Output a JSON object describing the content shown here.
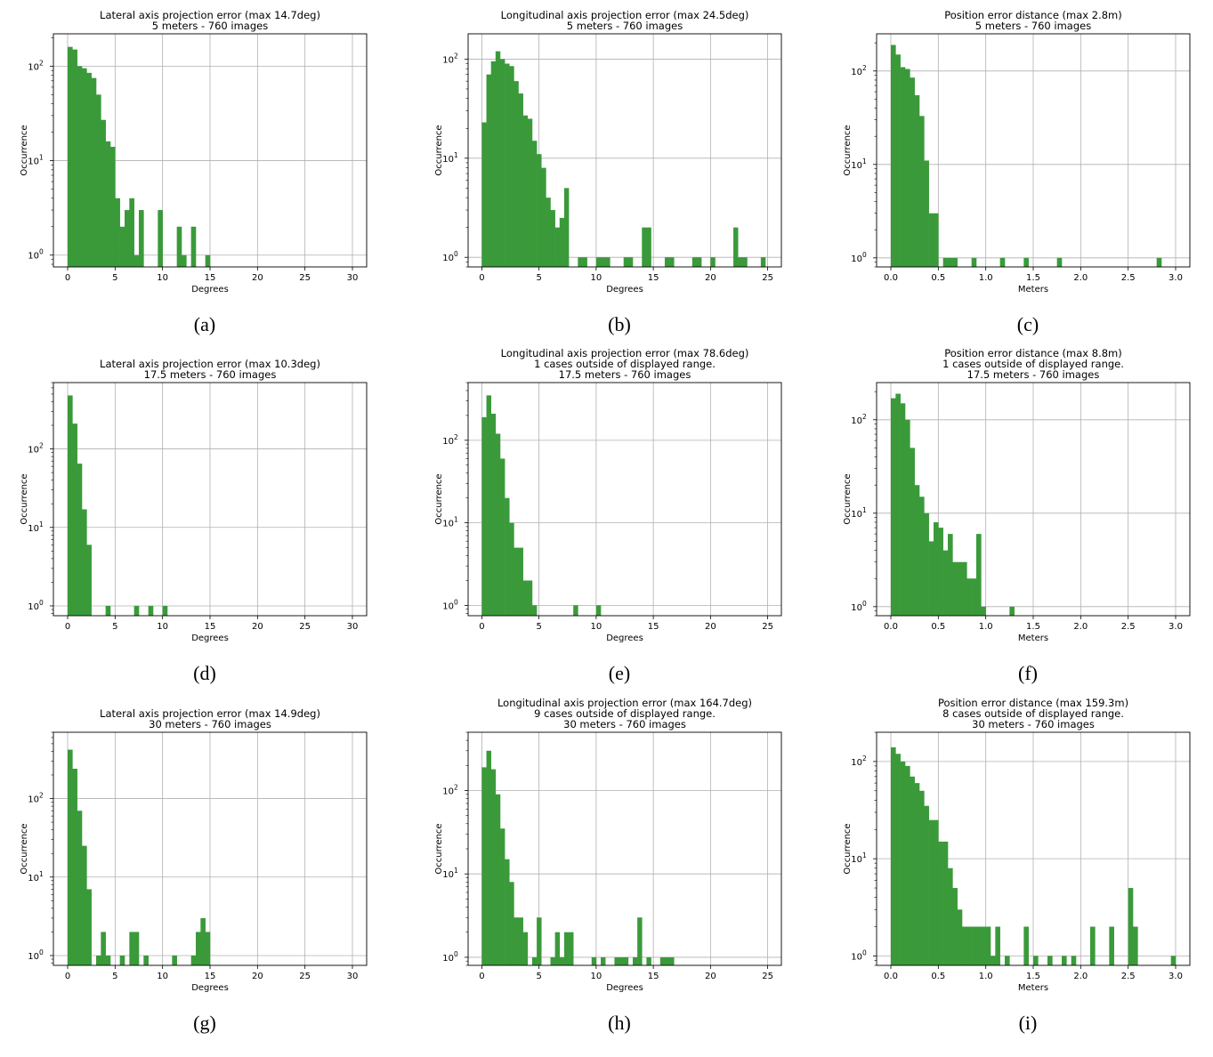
{
  "chart_data": [
    {
      "type": "bar",
      "title": [
        "Lateral axis projection error (max 14.7deg)",
        "5 meters - 760 images"
      ],
      "xlabel": "Degrees",
      "ylabel": "Occurrence",
      "caption": "(a)",
      "xlim": [
        -1.5,
        31.5
      ],
      "xticks": [
        0,
        5,
        10,
        15,
        20,
        25,
        30
      ],
      "yscale": "log",
      "ylim": [
        0.75,
        220
      ],
      "bin_width": 0.5,
      "grid": true,
      "color": "#3a9a3a",
      "x": [
        0,
        0.5,
        1,
        1.5,
        2,
        2.5,
        3,
        3.5,
        4,
        4.5,
        5,
        5.5,
        6,
        6.5,
        7,
        7.5,
        8.5,
        9.5,
        11.5,
        12,
        13,
        14.5
      ],
      "values": [
        160,
        150,
        100,
        95,
        85,
        75,
        50,
        27,
        16,
        14,
        4,
        2,
        3,
        4,
        1,
        3,
        0,
        3,
        2,
        1,
        2,
        1
      ]
    },
    {
      "type": "bar",
      "title": [
        "Longitudinal axis projection error (max 24.5deg)",
        "5 meters - 760 images"
      ],
      "xlabel": "Degrees",
      "ylabel": "Occurrence",
      "caption": "(b)",
      "xlim": [
        -1.2,
        26.2
      ],
      "xticks": [
        0,
        5,
        10,
        15,
        20,
        25
      ],
      "yscale": "log",
      "ylim": [
        0.8,
        180
      ],
      "bin_width": 0.4,
      "grid": true,
      "color": "#3a9a3a",
      "x": [
        0,
        0.4,
        0.8,
        1.2,
        1.6,
        2,
        2.4,
        2.8,
        3.2,
        3.6,
        4,
        4.4,
        4.8,
        5.2,
        5.6,
        6,
        6.4,
        6.8,
        7.2,
        8.4,
        8.8,
        10,
        10.4,
        10.8,
        12.4,
        12.8,
        14,
        14.4,
        16,
        16.4,
        18.4,
        18.8,
        20,
        22,
        22.4,
        22.8,
        24.4
      ],
      "values": [
        23,
        70,
        95,
        120,
        100,
        90,
        85,
        60,
        45,
        27,
        25,
        15,
        11,
        8,
        4,
        3,
        2,
        2.5,
        5,
        1,
        1,
        1,
        1,
        1,
        1,
        1,
        2,
        2,
        1,
        1,
        1,
        1,
        1,
        2,
        1,
        1,
        1
      ]
    },
    {
      "type": "bar",
      "title": [
        "Position error distance (max 2.8m)",
        "5 meters - 760 images"
      ],
      "xlabel": "Meters",
      "ylabel": "Occurrence",
      "caption": "(c)",
      "xlim": [
        -0.15,
        3.15
      ],
      "xticks": [
        0.0,
        0.5,
        1.0,
        1.5,
        2.0,
        2.5,
        3.0
      ],
      "yscale": "log",
      "ylim": [
        0.8,
        250
      ],
      "bin_width": 0.05,
      "grid": true,
      "color": "#3a9a3a",
      "x": [
        0,
        0.05,
        0.1,
        0.15,
        0.2,
        0.25,
        0.3,
        0.35,
        0.4,
        0.45,
        0.55,
        0.6,
        0.65,
        0.85,
        1.15,
        1.4,
        1.75,
        2.8
      ],
      "values": [
        190,
        150,
        110,
        105,
        85,
        55,
        33,
        11,
        3,
        3,
        1,
        1,
        1,
        1,
        1,
        1,
        1,
        1
      ]
    },
    {
      "type": "bar",
      "title": [
        "Lateral axis projection error (max 10.3deg)",
        "17.5 meters - 760 images"
      ],
      "xlabel": "Degrees",
      "ylabel": "Occurrence",
      "caption": "(d)",
      "xlim": [
        -1.5,
        31.5
      ],
      "xticks": [
        0,
        5,
        10,
        15,
        20,
        25,
        30
      ],
      "yscale": "log",
      "ylim": [
        0.75,
        700
      ],
      "bin_width": 0.5,
      "grid": true,
      "color": "#3a9a3a",
      "x": [
        0,
        0.5,
        1,
        1.5,
        2,
        4,
        7,
        8.5,
        10
      ],
      "values": [
        480,
        210,
        65,
        17,
        6,
        1,
        1,
        1,
        1
      ]
    },
    {
      "type": "bar",
      "title": [
        "Longitudinal axis projection error (max 78.6deg)",
        "1 cases outside of displayed range.",
        "17.5 meters - 760 images"
      ],
      "xlabel": "Degrees",
      "ylabel": "Occurrence",
      "caption": "(e)",
      "xlim": [
        -1.2,
        26.2
      ],
      "xticks": [
        0,
        5,
        10,
        15,
        20,
        25
      ],
      "yscale": "log",
      "ylim": [
        0.75,
        500
      ],
      "bin_width": 0.4,
      "grid": true,
      "color": "#3a9a3a",
      "x": [
        0,
        0.4,
        0.8,
        1.2,
        1.6,
        2,
        2.4,
        2.8,
        3.2,
        3.6,
        4,
        4.4,
        8,
        10
      ],
      "values": [
        190,
        350,
        210,
        120,
        60,
        20,
        10,
        5,
        5,
        2,
        2,
        1,
        1,
        1
      ]
    },
    {
      "type": "bar",
      "title": [
        "Position error distance (max 8.8m)",
        "1 cases outside of displayed range.",
        "17.5 meters - 760 images"
      ],
      "xlabel": "Meters",
      "ylabel": "Occurrence",
      "caption": "(f)",
      "xlim": [
        -0.15,
        3.15
      ],
      "xticks": [
        0.0,
        0.5,
        1.0,
        1.5,
        2.0,
        2.5,
        3.0
      ],
      "yscale": "log",
      "ylim": [
        0.8,
        250
      ],
      "bin_width": 0.05,
      "grid": true,
      "color": "#3a9a3a",
      "x": [
        0,
        0.05,
        0.1,
        0.15,
        0.2,
        0.25,
        0.3,
        0.35,
        0.4,
        0.45,
        0.5,
        0.55,
        0.6,
        0.65,
        0.7,
        0.75,
        0.8,
        0.85,
        0.9,
        0.95,
        1.25
      ],
      "values": [
        170,
        190,
        150,
        100,
        50,
        20,
        15,
        10,
        5,
        8,
        7,
        4,
        6,
        3,
        3,
        3,
        2,
        2,
        6,
        1,
        1
      ]
    },
    {
      "type": "bar",
      "title": [
        "Lateral axis projection error (max 14.9deg)",
        "30 meters - 760 images"
      ],
      "xlabel": "Degrees",
      "ylabel": "Occurrence",
      "caption": "(g)",
      "xlim": [
        -1.5,
        31.5
      ],
      "xticks": [
        0,
        5,
        10,
        15,
        20,
        25,
        30
      ],
      "yscale": "log",
      "ylim": [
        0.75,
        700
      ],
      "bin_width": 0.5,
      "grid": true,
      "color": "#3a9a3a",
      "x": [
        0,
        0.5,
        1,
        1.5,
        2,
        3,
        3.5,
        4,
        5.5,
        6.5,
        7,
        8,
        11,
        13,
        13.5,
        14,
        14.5
      ],
      "values": [
        420,
        240,
        70,
        25,
        7,
        1,
        2,
        1,
        1,
        2,
        2,
        1,
        1,
        1,
        2,
        3,
        2
      ]
    },
    {
      "type": "bar",
      "title": [
        "Longitudinal axis projection error (max 164.7deg)",
        "9 cases outside of displayed range.",
        "30 meters - 760 images"
      ],
      "xlabel": "Degrees",
      "ylabel": "Occurrence",
      "caption": "(h)",
      "xlim": [
        -1.2,
        26.2
      ],
      "xticks": [
        0,
        5,
        10,
        15,
        20,
        25
      ],
      "yscale": "log",
      "ylim": [
        0.8,
        500
      ],
      "bin_width": 0.4,
      "grid": true,
      "color": "#3a9a3a",
      "x": [
        0,
        0.4,
        0.8,
        1.2,
        1.6,
        2,
        2.4,
        2.8,
        3.2,
        3.6,
        4.4,
        4.8,
        6,
        6.4,
        6.8,
        7.2,
        7.6,
        9.6,
        10.4,
        11.6,
        12,
        12.4,
        13.2,
        13.6,
        14.4,
        15.6,
        16,
        16.4
      ],
      "values": [
        190,
        300,
        180,
        90,
        35,
        15,
        8,
        3,
        3,
        2,
        1,
        3,
        1,
        2,
        1,
        2,
        2,
        1,
        1,
        1,
        1,
        1,
        1,
        3,
        1,
        1,
        1,
        1
      ]
    },
    {
      "type": "bar",
      "title": [
        "Position error distance (max 159.3m)",
        "8 cases outside of displayed range.",
        "30 meters - 760 images"
      ],
      "xlabel": "Meters",
      "ylabel": "Occurrence",
      "caption": "(i)",
      "xlim": [
        -0.15,
        3.15
      ],
      "xticks": [
        0.0,
        0.5,
        1.0,
        1.5,
        2.0,
        2.5,
        3.0
      ],
      "yscale": "log",
      "ylim": [
        0.8,
        200
      ],
      "bin_width": 0.05,
      "grid": true,
      "color": "#3a9a3a",
      "x": [
        0,
        0.05,
        0.1,
        0.15,
        0.2,
        0.25,
        0.3,
        0.35,
        0.4,
        0.45,
        0.5,
        0.55,
        0.6,
        0.65,
        0.7,
        0.75,
        0.8,
        0.85,
        0.9,
        0.95,
        1.0,
        1.05,
        1.1,
        1.2,
        1.4,
        1.5,
        1.65,
        1.8,
        1.9,
        2.1,
        2.3,
        2.5,
        2.55,
        2.95
      ],
      "values": [
        140,
        120,
        100,
        90,
        70,
        60,
        50,
        35,
        25,
        25,
        15,
        15,
        8,
        5,
        3,
        2,
        2,
        2,
        2,
        2,
        2,
        1,
        2,
        1,
        2,
        1,
        1,
        1,
        1,
        2,
        2,
        5,
        2,
        1
      ]
    }
  ]
}
